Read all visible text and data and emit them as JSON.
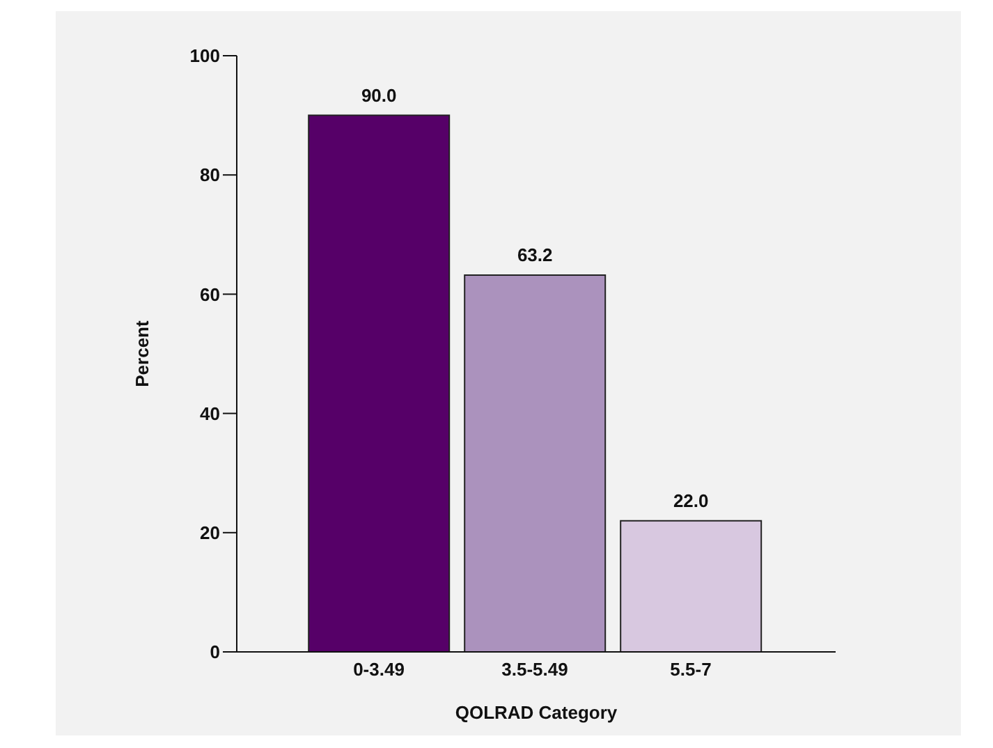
{
  "chart_data": {
    "type": "bar",
    "xlabel": "QOLRAD Category",
    "ylabel": "Percent",
    "categories": [
      "0-3.49",
      "3.5-5.49",
      "5.5-7"
    ],
    "values": [
      90,
      63.2,
      22
    ],
    "value_labels": [
      "90.0",
      "63.2",
      "22.0"
    ],
    "colors": [
      "#560068",
      "#ab92bd",
      "#d8c8e0"
    ],
    "ylim": [
      0,
      100
    ],
    "yticks": [
      0,
      20,
      40,
      60,
      80,
      100
    ],
    "grid": false
  }
}
